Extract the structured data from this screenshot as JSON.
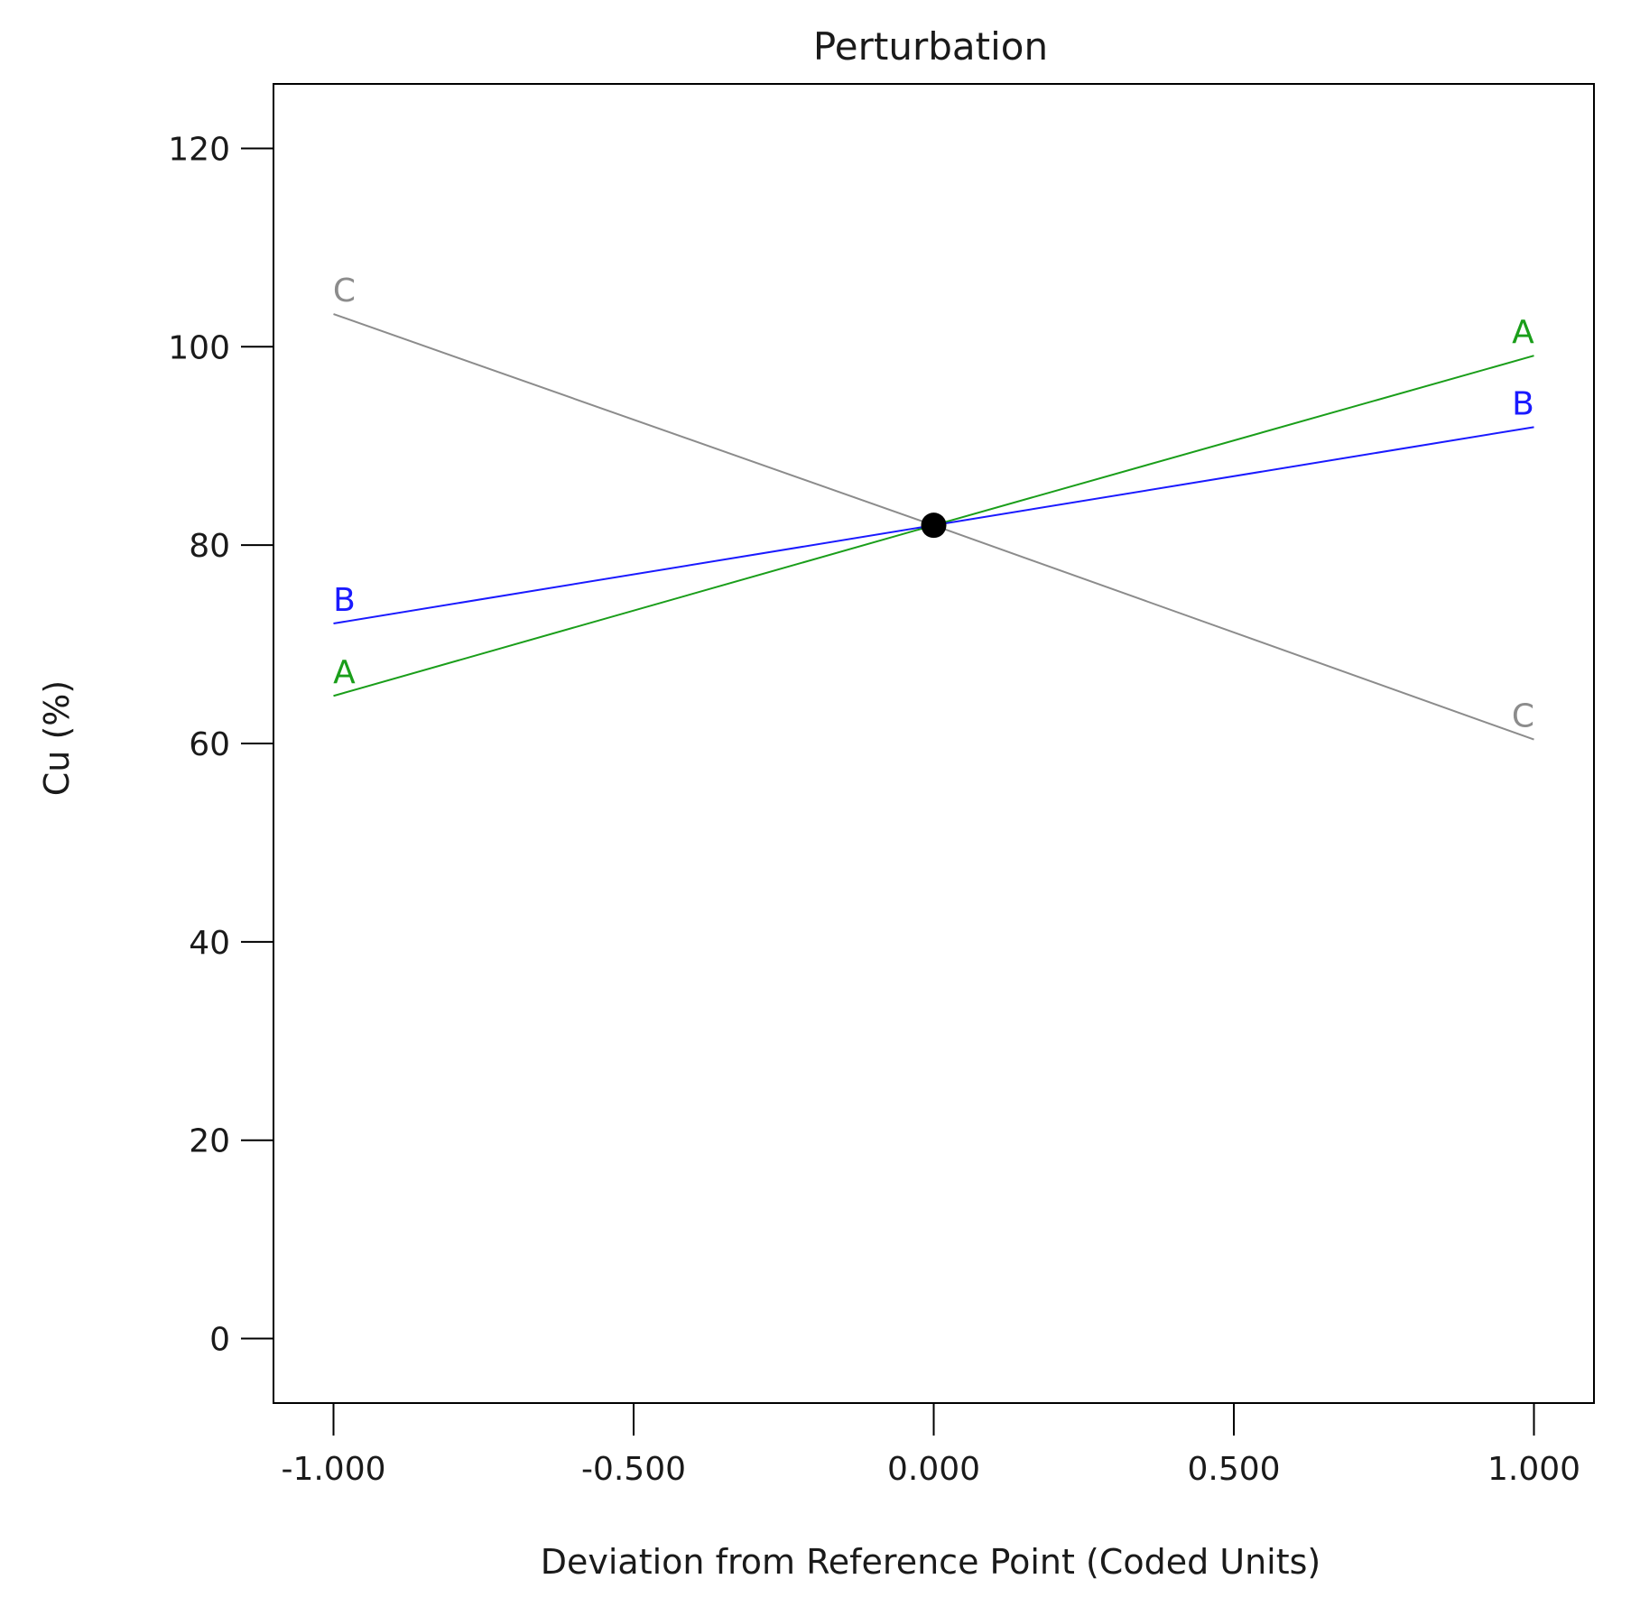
{
  "chart_data": {
    "type": "line",
    "title": "Perturbation",
    "xlabel": "Deviation from Reference Point (Coded Units)",
    "ylabel": "Cu (%)",
    "xlim": [
      -1.1,
      1.1
    ],
    "ylim": [
      -6.5,
      126.5
    ],
    "x_ticks": [
      -1.0,
      -0.5,
      0.0,
      0.5,
      1.0
    ],
    "x_tick_labels": [
      "-1.000",
      "-0.500",
      "0.000",
      "0.500",
      "1.000"
    ],
    "y_ticks": [
      0,
      20,
      40,
      60,
      80,
      100,
      120
    ],
    "y_tick_labels": [
      "0",
      "20",
      "40",
      "60",
      "80",
      "100",
      "120"
    ],
    "grid": false,
    "legend": "none",
    "reference_point": {
      "x": 0.0,
      "y": 82.0
    },
    "series": [
      {
        "name": "A",
        "color": "#1a9e1a",
        "x": [
          -1.0,
          0.0,
          1.0
        ],
        "y": [
          64.8,
          82.0,
          99.1
        ]
      },
      {
        "name": "B",
        "color": "#1a1aff",
        "x": [
          -1.0,
          0.0,
          1.0
        ],
        "y": [
          72.1,
          82.0,
          91.9
        ]
      },
      {
        "name": "C",
        "color": "#8c8c8c",
        "x": [
          -1.0,
          0.0,
          1.0
        ],
        "y": [
          103.3,
          82.0,
          60.4
        ]
      }
    ]
  }
}
